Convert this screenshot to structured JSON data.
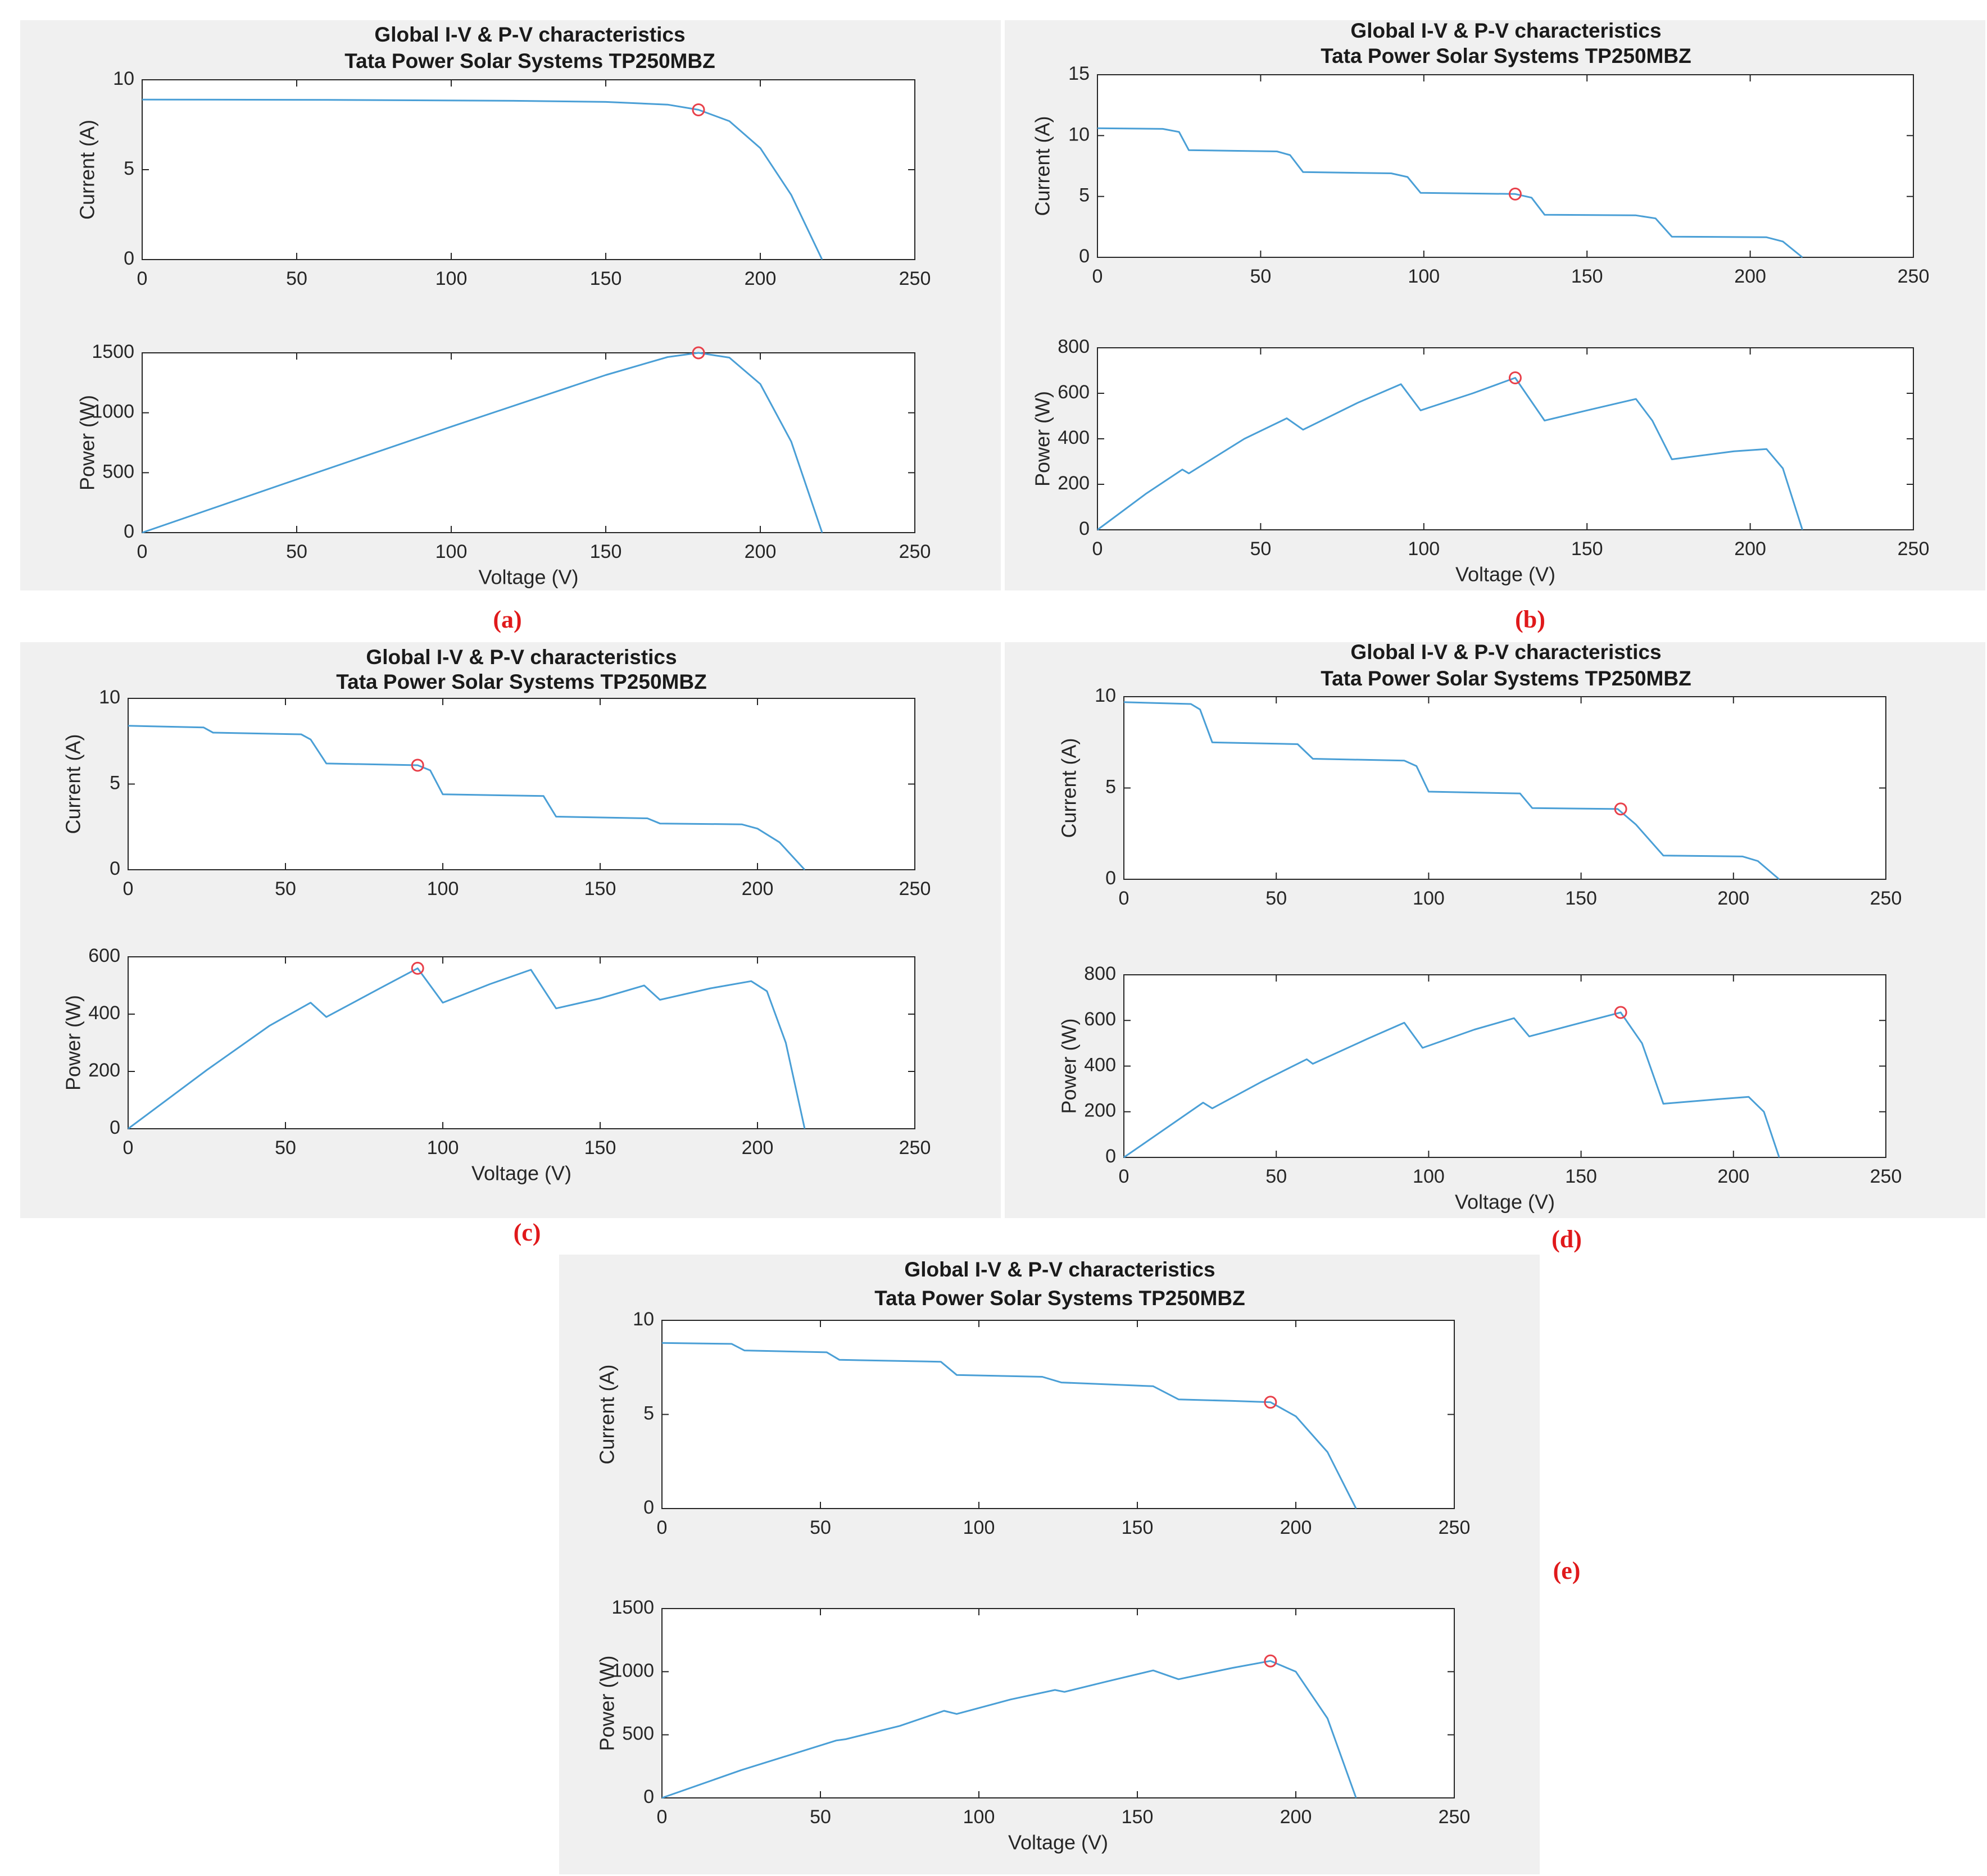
{
  "colors": {
    "curve": "#4a9fd6",
    "mpp_marker": "#e8404a",
    "panel_bg": "#f0f0f0",
    "label": "#e0191b"
  },
  "chart_data": [
    {
      "panel_label": "(a)",
      "title": [
        "Global I-V & P-V characteristics",
        "Tata Power Solar Systems TP250MBZ"
      ],
      "iv": {
        "type": "line",
        "xlabel": "",
        "ylabel": "Current (A)",
        "xlim": [
          0,
          250
        ],
        "ylim": [
          0,
          10
        ],
        "xticks": [
          0,
          50,
          100,
          150,
          200,
          250
        ],
        "yticks": [
          0,
          5,
          10
        ],
        "x": [
          0,
          60,
          120,
          150,
          170,
          180,
          190,
          200,
          210,
          220
        ],
        "y": [
          8.9,
          8.88,
          8.83,
          8.77,
          8.62,
          8.33,
          7.7,
          6.2,
          3.6,
          0
        ],
        "mpp": [
          180,
          8.33
        ]
      },
      "pv": {
        "type": "line",
        "xlabel": "Voltage (V)",
        "ylabel": "Power (W)",
        "xlim": [
          0,
          250
        ],
        "ylim": [
          0,
          1500
        ],
        "xticks": [
          0,
          50,
          100,
          150,
          200,
          250
        ],
        "yticks": [
          0,
          500,
          1000,
          1500
        ],
        "x": [
          0,
          50,
          100,
          150,
          170,
          180,
          190,
          200,
          210,
          220
        ],
        "y": [
          0,
          444,
          884,
          1315,
          1465,
          1500,
          1460,
          1240,
          760,
          0
        ],
        "mpp": [
          180,
          1500
        ]
      }
    },
    {
      "panel_label": "(b)",
      "title": [
        "Global I-V & P-V characteristics",
        "Tata Power Solar Systems TP250MBZ"
      ],
      "iv": {
        "type": "line",
        "xlabel": "",
        "ylabel": "Current (A)",
        "xlim": [
          0,
          250
        ],
        "ylim": [
          0,
          15
        ],
        "xticks": [
          0,
          50,
          100,
          150,
          200,
          250
        ],
        "yticks": [
          0,
          5,
          10,
          15
        ],
        "x": [
          0,
          20,
          25,
          28,
          55,
          59,
          63,
          90,
          95,
          99,
          128,
          133,
          137,
          165,
          171,
          176,
          205,
          210,
          216
        ],
        "y": [
          10.6,
          10.55,
          10.3,
          8.8,
          8.7,
          8.4,
          7.0,
          6.9,
          6.6,
          5.3,
          5.2,
          4.9,
          3.5,
          3.45,
          3.2,
          1.7,
          1.65,
          1.3,
          0
        ],
        "mpp": [
          128,
          5.2
        ]
      },
      "pv": {
        "type": "line",
        "xlabel": "Voltage (V)",
        "ylabel": "Power (W)",
        "xlim": [
          0,
          250
        ],
        "ylim": [
          0,
          800
        ],
        "xticks": [
          0,
          50,
          100,
          150,
          200,
          250
        ],
        "yticks": [
          0,
          200,
          400,
          600,
          800
        ],
        "x": [
          0,
          15,
          26,
          28,
          45,
          58,
          63,
          80,
          93,
          99,
          115,
          128,
          137,
          150,
          165,
          170,
          176,
          195,
          205,
          210,
          216
        ],
        "y": [
          0,
          160,
          265,
          248,
          400,
          490,
          440,
          560,
          640,
          525,
          600,
          668,
          480,
          525,
          575,
          480,
          310,
          345,
          355,
          270,
          0
        ],
        "mpp": [
          128,
          668
        ]
      }
    },
    {
      "panel_label": "(c)",
      "title": [
        "Global I-V & P-V characteristics",
        "Tata Power Solar Systems TP250MBZ"
      ],
      "iv": {
        "type": "line",
        "xlabel": "",
        "ylabel": "Current (A)",
        "xlim": [
          0,
          250
        ],
        "ylim": [
          0,
          10
        ],
        "xticks": [
          0,
          50,
          100,
          150,
          200,
          250
        ],
        "yticks": [
          0,
          5,
          10
        ],
        "x": [
          0,
          24,
          27,
          55,
          58,
          63,
          92,
          96,
          100,
          132,
          136,
          165,
          169,
          195,
          200,
          207,
          215
        ],
        "y": [
          8.4,
          8.3,
          8.0,
          7.9,
          7.6,
          6.2,
          6.1,
          5.8,
          4.4,
          4.3,
          3.1,
          3.0,
          2.7,
          2.65,
          2.4,
          1.6,
          0
        ],
        "mpp": [
          92,
          6.1
        ]
      },
      "pv": {
        "type": "line",
        "xlabel": "Voltage (V)",
        "ylabel": "Power (W)",
        "xlim": [
          0,
          250
        ],
        "ylim": [
          0,
          600
        ],
        "xticks": [
          0,
          50,
          100,
          150,
          200,
          250
        ],
        "yticks": [
          0,
          200,
          400,
          600
        ],
        "x": [
          0,
          25,
          45,
          58,
          63,
          80,
          92,
          100,
          115,
          128,
          136,
          150,
          164,
          169,
          185,
          198,
          203,
          209,
          215
        ],
        "y": [
          0,
          205,
          360,
          440,
          390,
          490,
          560,
          440,
          505,
          555,
          420,
          455,
          500,
          450,
          490,
          515,
          480,
          300,
          0
        ],
        "mpp": [
          92,
          560
        ]
      }
    },
    {
      "panel_label": "(d)",
      "title": [
        "Global I-V & P-V characteristics",
        "Tata Power Solar Systems TP250MBZ"
      ],
      "iv": {
        "type": "line",
        "xlabel": "",
        "ylabel": "Current (A)",
        "xlim": [
          0,
          250
        ],
        "ylim": [
          0,
          10
        ],
        "xticks": [
          0,
          50,
          100,
          150,
          200,
          250
        ],
        "yticks": [
          0,
          5,
          10
        ],
        "x": [
          0,
          22,
          25,
          29,
          57,
          62,
          92,
          96,
          100,
          130,
          134,
          162,
          168,
          177,
          203,
          208,
          215
        ],
        "y": [
          9.7,
          9.6,
          9.3,
          7.5,
          7.4,
          6.6,
          6.5,
          6.2,
          4.8,
          4.7,
          3.9,
          3.85,
          3.0,
          1.3,
          1.25,
          1.0,
          0
        ],
        "mpp": [
          163,
          3.85
        ]
      },
      "pv": {
        "type": "line",
        "xlabel": "Voltage (V)",
        "ylabel": "Power (W)",
        "xlim": [
          0,
          250
        ],
        "ylim": [
          0,
          800
        ],
        "xticks": [
          0,
          50,
          100,
          150,
          200,
          250
        ],
        "yticks": [
          0,
          200,
          400,
          600,
          800
        ],
        "x": [
          0,
          26,
          29,
          45,
          60,
          62,
          80,
          92,
          98,
          115,
          128,
          133,
          150,
          163,
          170,
          177,
          195,
          205,
          210,
          215
        ],
        "y": [
          0,
          240,
          215,
          330,
          430,
          410,
          520,
          590,
          480,
          560,
          610,
          530,
          590,
          635,
          500,
          235,
          255,
          265,
          200,
          0
        ],
        "mpp": [
          163,
          635
        ]
      }
    },
    {
      "panel_label": "(e)",
      "title": [
        "Global I-V & P-V characteristics",
        "Tata Power Solar Systems TP250MBZ"
      ],
      "iv": {
        "type": "line",
        "xlabel": "",
        "ylabel": "Current (A)",
        "xlim": [
          0,
          250
        ],
        "ylim": [
          0,
          10
        ],
        "xticks": [
          0,
          50,
          100,
          150,
          200,
          250
        ],
        "yticks": [
          0,
          5,
          10
        ],
        "x": [
          0,
          22,
          26,
          52,
          56,
          88,
          93,
          120,
          126,
          155,
          163,
          180,
          192,
          200,
          210,
          219
        ],
        "y": [
          8.8,
          8.75,
          8.4,
          8.3,
          7.9,
          7.8,
          7.1,
          7.0,
          6.7,
          6.5,
          5.8,
          5.72,
          5.65,
          4.9,
          3.0,
          0
        ],
        "mpp": [
          192,
          5.65
        ]
      },
      "pv": {
        "type": "line",
        "xlabel": "Voltage (V)",
        "ylabel": "Power (W)",
        "xlim": [
          0,
          250
        ],
        "ylim": [
          0,
          1500
        ],
        "xticks": [
          0,
          50,
          100,
          150,
          200,
          250
        ],
        "yticks": [
          0,
          500,
          1000,
          1500
        ],
        "x": [
          0,
          25,
          55,
          58,
          75,
          89,
          93,
          110,
          124,
          127,
          140,
          155,
          163,
          180,
          192,
          200,
          210,
          219
        ],
        "y": [
          0,
          220,
          455,
          465,
          570,
          690,
          665,
          780,
          855,
          840,
          920,
          1010,
          940,
          1030,
          1085,
          1000,
          630,
          0
        ],
        "mpp": [
          192,
          1085
        ]
      }
    }
  ]
}
